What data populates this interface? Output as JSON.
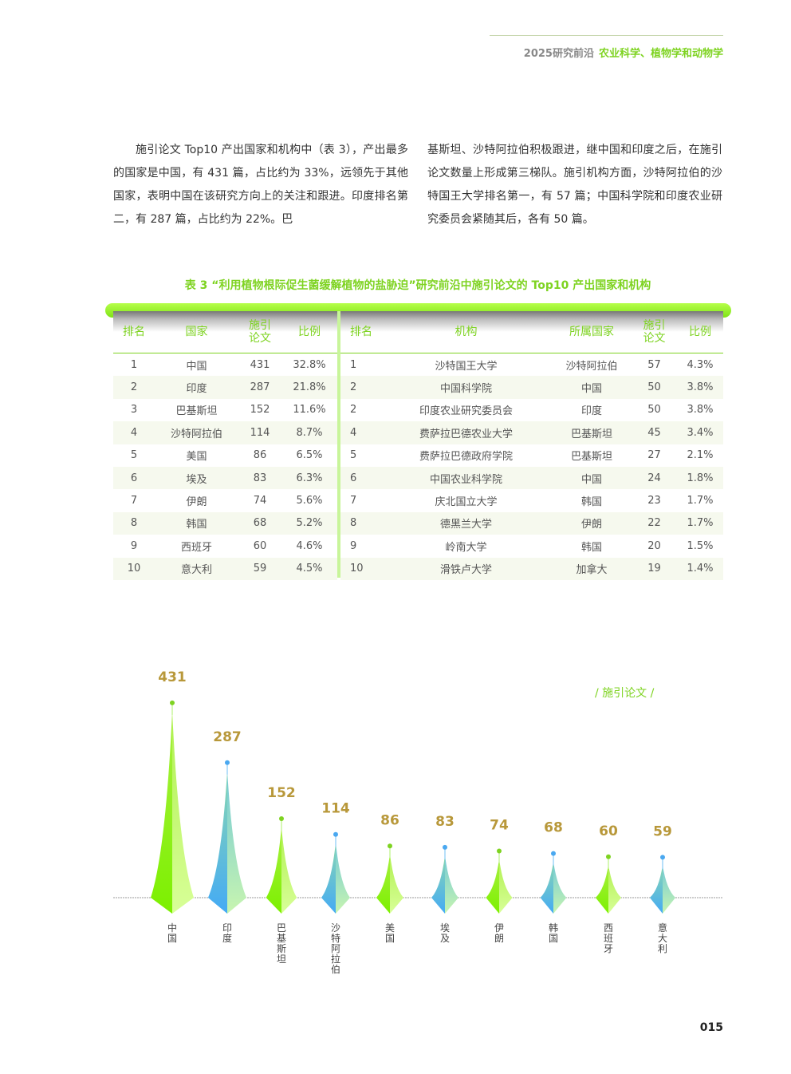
{
  "header": {
    "year_title": "2025研究前沿",
    "section": "农业科学、植物学和动物学"
  },
  "body": {
    "left": "施引论文 Top10 产出国家和机构中（表 3），产出最多的国家是中国，有 431 篇，占比约为 33%，远领先于其他国家，表明中国在该研究方向上的关注和跟进。印度排名第二，有 287 篇，占比约为 22%。巴",
    "right": "基斯坦、沙特阿拉伯积极跟进，继中国和印度之后，在施引论文数量上形成第三梯队。施引机构方面，沙特阿拉伯的沙特国王大学排名第一，有 57 篇；中国科学院和印度农业研究委员会紧随其后，各有 50 篇。"
  },
  "table": {
    "caption": "表 3 “利用植物根际促生菌缓解植物的盐胁迫”研究前沿中施引论文的 Top10 产出国家和机构",
    "country_headers": [
      "排名",
      "国家",
      "施引论文",
      "比例"
    ],
    "institution_headers": [
      "排名",
      "机构",
      "所属国家",
      "施引论文",
      "比例"
    ],
    "countries": [
      [
        "1",
        "中国",
        "431",
        "32.8%"
      ],
      [
        "2",
        "印度",
        "287",
        "21.8%"
      ],
      [
        "3",
        "巴基斯坦",
        "152",
        "11.6%"
      ],
      [
        "4",
        "沙特阿拉伯",
        "114",
        "8.7%"
      ],
      [
        "5",
        "美国",
        "86",
        "6.5%"
      ],
      [
        "6",
        "埃及",
        "83",
        "6.3%"
      ],
      [
        "7",
        "伊朗",
        "74",
        "5.6%"
      ],
      [
        "8",
        "韩国",
        "68",
        "5.2%"
      ],
      [
        "9",
        "西班牙",
        "60",
        "4.6%"
      ],
      [
        "10",
        "意大利",
        "59",
        "4.5%"
      ]
    ],
    "institutions": [
      [
        "1",
        "沙特国王大学",
        "沙特阿拉伯",
        "57",
        "4.3%"
      ],
      [
        "2",
        "中国科学院",
        "中国",
        "50",
        "3.8%"
      ],
      [
        "2",
        "印度农业研究委员会",
        "印度",
        "50",
        "3.8%"
      ],
      [
        "4",
        "费萨拉巴德农业大学",
        "巴基斯坦",
        "45",
        "3.4%"
      ],
      [
        "5",
        "费萨拉巴德政府学院",
        "巴基斯坦",
        "27",
        "2.1%"
      ],
      [
        "6",
        "中国农业科学院",
        "中国",
        "24",
        "1.8%"
      ],
      [
        "7",
        "庆北国立大学",
        "韩国",
        "23",
        "1.7%"
      ],
      [
        "8",
        "德黑兰大学",
        "伊朗",
        "22",
        "1.7%"
      ],
      [
        "9",
        "岭南大学",
        "韩国",
        "20",
        "1.5%"
      ],
      [
        "10",
        "滑铁卢大学",
        "加拿大",
        "19",
        "1.4%"
      ]
    ]
  },
  "chart_data": {
    "type": "bar",
    "legend": "/ 施引论文 /",
    "categories": [
      "中国",
      "印度",
      "巴基斯坦",
      "沙特阿拉伯",
      "美国",
      "埃及",
      "伊朗",
      "韩国",
      "西班牙",
      "意大利"
    ],
    "values": [
      431,
      287,
      152,
      114,
      86,
      83,
      74,
      68,
      60,
      59
    ],
    "colors": {
      "green": "#7ed321",
      "blue": "#4aa8f0",
      "value_label": "#b8983a"
    }
  },
  "page_number": "015"
}
